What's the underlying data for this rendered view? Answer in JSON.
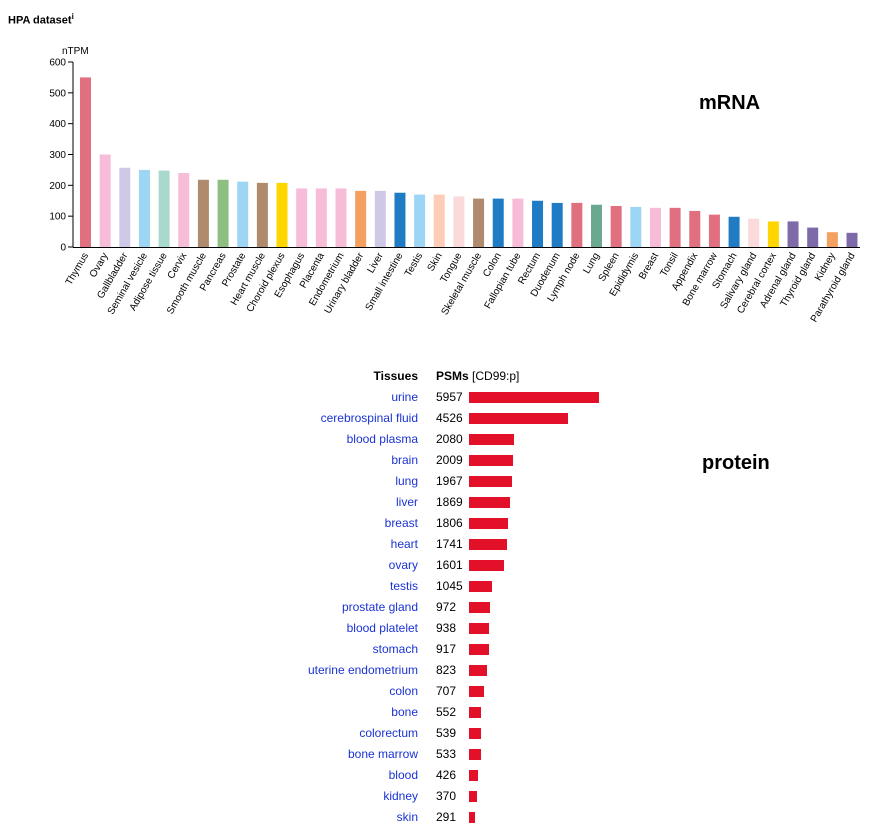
{
  "header": {
    "title": "HPA dataset",
    "info_marker": "i"
  },
  "sections": {
    "mrna_label": "mRNA",
    "protein_label": "protein"
  },
  "colors": {
    "protein_bar": "#e3102a",
    "link": "#1a33d4"
  },
  "chart_data": [
    {
      "type": "bar",
      "ylabel": "nTPM",
      "ylim": [
        0,
        600
      ],
      "yticks": [
        "0",
        "100",
        "200",
        "300",
        "400",
        "500",
        "600"
      ],
      "categories": [
        "Thymus",
        "Ovary",
        "Gallbladder",
        "Seminal vesicle",
        "Adipose tissue",
        "Cervix",
        "Smooth muscle",
        "Pancreas",
        "Prostate",
        "Heart muscle",
        "Choroid plexus",
        "Esophagus",
        "Placenta",
        "Endometrium",
        "Urinary bladder",
        "Liver",
        "Small intestine",
        "Testis",
        "Skin",
        "Tongue",
        "Skeletal muscle",
        "Colon",
        "Fallopian tube",
        "Rectum",
        "Duodenum",
        "Lymph node",
        "Lung",
        "Spleen",
        "Epididymis",
        "Breast",
        "Tonsil",
        "Appendix",
        "Bone marrow",
        "Stomach",
        "Salivary gland",
        "Cerebral cortex",
        "Adrenal gland",
        "Thyroid gland",
        "Kidney",
        "Parathyroid gland"
      ],
      "values": [
        550,
        300,
        257,
        250,
        248,
        240,
        218,
        218,
        212,
        208,
        208,
        190,
        190,
        190,
        182,
        182,
        176,
        170,
        170,
        164,
        157,
        157,
        157,
        150,
        143,
        143,
        137,
        133,
        130,
        127,
        127,
        117,
        105,
        98,
        92,
        83,
        83,
        63,
        48,
        46
      ],
      "colors": [
        "#e07080",
        "#f7bcd8",
        "#cfc8e6",
        "#9dd5f4",
        "#a8d9cc",
        "#f7bcd8",
        "#b08a6c",
        "#8fbf80",
        "#9dd5f4",
        "#b08a6c",
        "#ffd600",
        "#f7bcd8",
        "#f7bcd8",
        "#f7bcd8",
        "#f4a060",
        "#cfc8e6",
        "#1f7cc4",
        "#9dd5f4",
        "#ffccb8",
        "#fadada",
        "#b08a6c",
        "#1f7cc4",
        "#f7bcd8",
        "#1f7cc4",
        "#1f7cc4",
        "#e07080",
        "#6aa890",
        "#e07080",
        "#9dd5f4",
        "#f7bcd8",
        "#e07080",
        "#e07080",
        "#e07080",
        "#1f7cc4",
        "#fadada",
        "#ffd600",
        "#7e6aa8",
        "#7e6aa8",
        "#f4a060",
        "#7e6aa8"
      ]
    },
    {
      "type": "bar",
      "orientation": "horizontal",
      "header_tissues": "Tissues",
      "header_psms": "PSMs",
      "header_psms_suffix": "[CD99:p]",
      "categories": [
        "urine",
        "cerebrospinal fluid",
        "blood plasma",
        "brain",
        "lung",
        "liver",
        "breast",
        "heart",
        "ovary",
        "testis",
        "prostate gland",
        "blood platelet",
        "stomach",
        "uterine endometrium",
        "colon",
        "bone",
        "colorectum",
        "bone marrow",
        "blood",
        "kidney",
        "skin"
      ],
      "values": [
        5957,
        4526,
        2080,
        2009,
        1967,
        1869,
        1806,
        1741,
        1601,
        1045,
        972,
        938,
        917,
        823,
        707,
        552,
        539,
        533,
        426,
        370,
        291
      ],
      "xlim": [
        0,
        5957
      ]
    }
  ]
}
